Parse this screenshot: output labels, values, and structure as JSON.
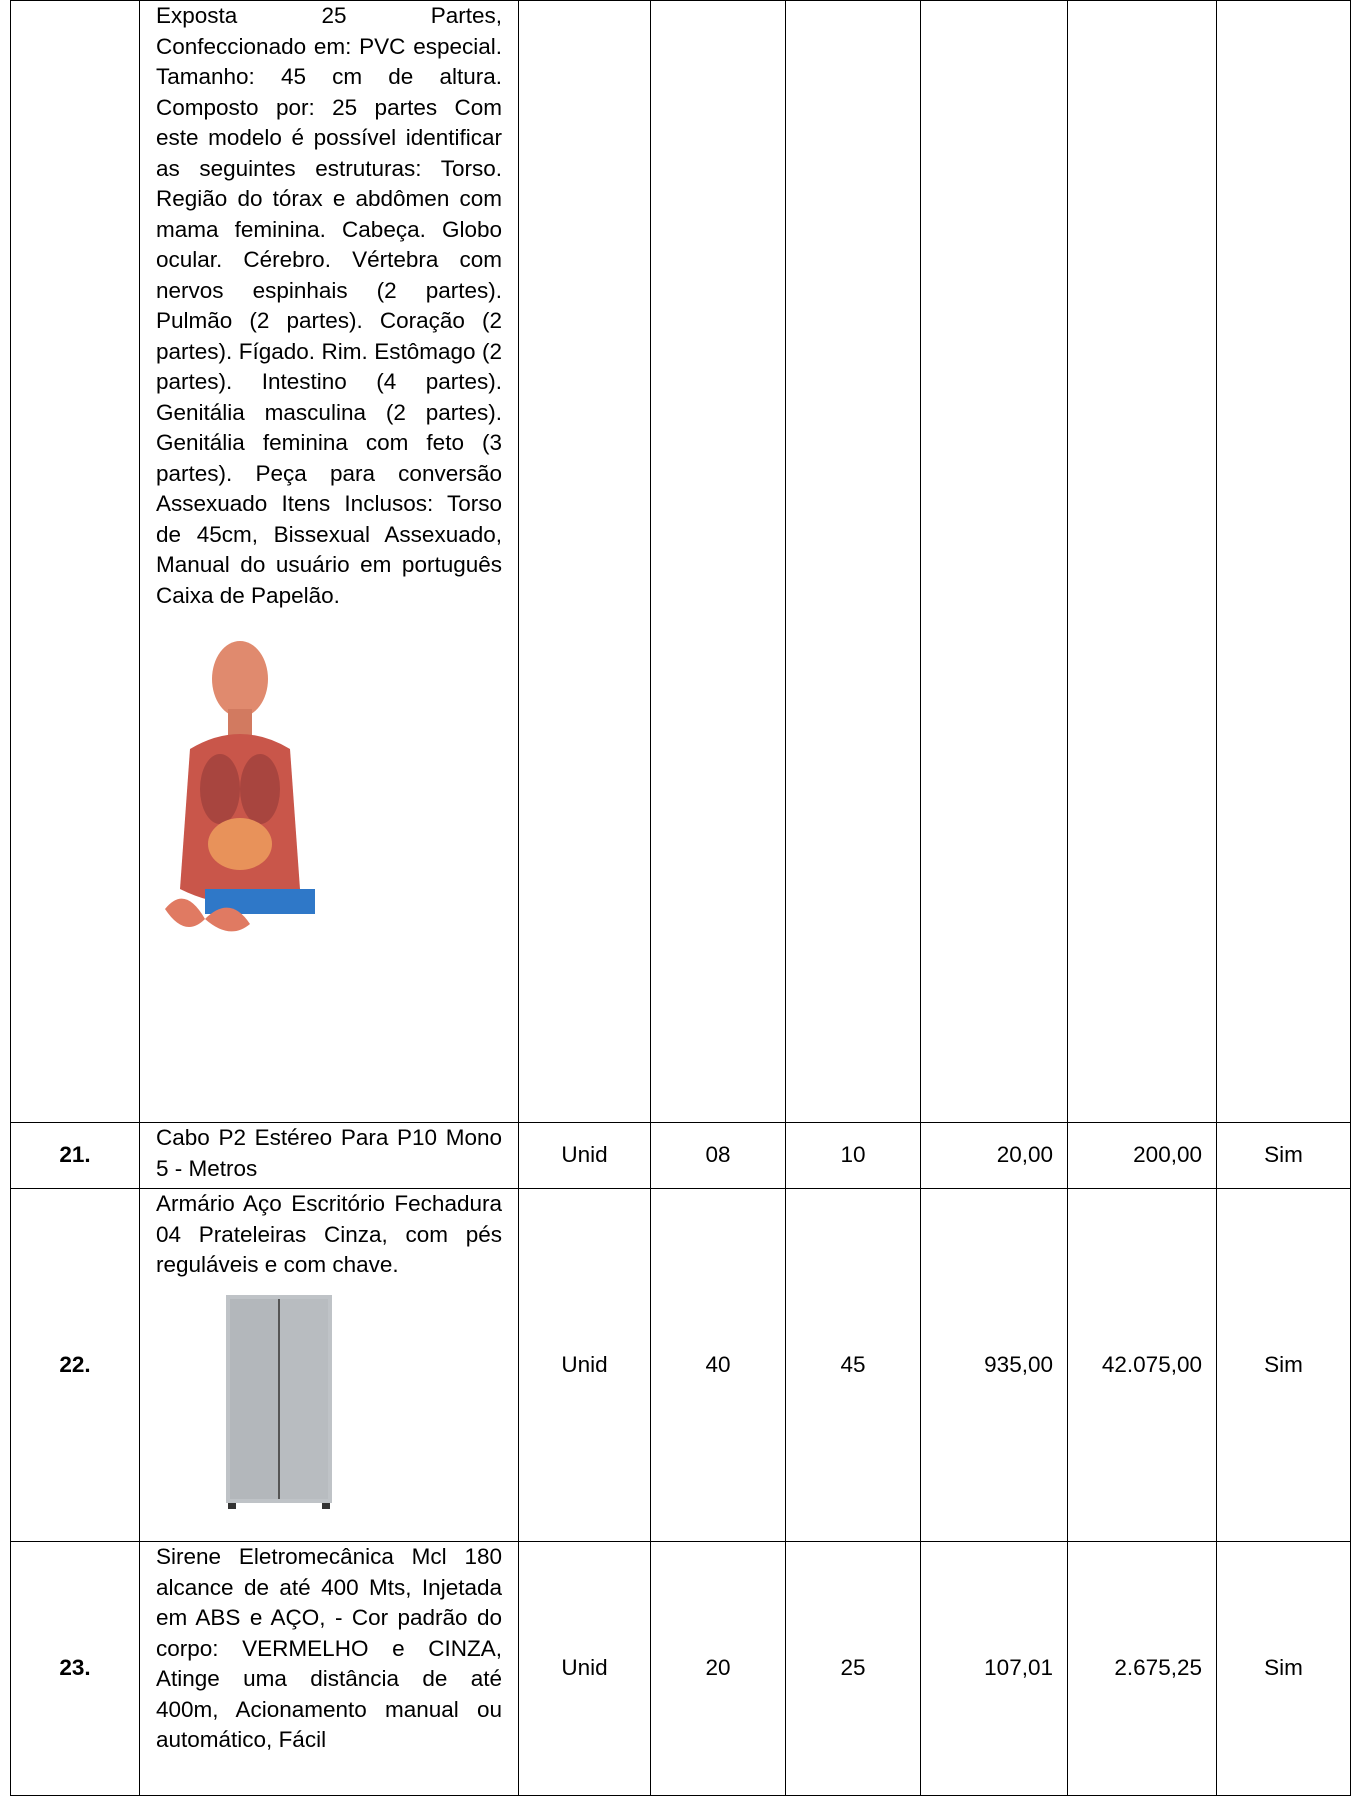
{
  "table": {
    "rows": [
      {
        "description": "Exposta 25 Partes, Confeccionado em: PVC especial. Tamanho: 45 cm de altura. Composto por: 25 partes Com este modelo é possível identificar as seguintes estruturas: Torso. Região do tórax e abdômen com mama feminina. Cabeça. Globo ocular. Cérebro. Vértebra com nervos espinhais (2 partes). Pulmão (2 partes). Coração (2 partes). Fígado. Rim. Estômago (2 partes). Intestino (4 partes). Genitália masculina (2 partes). Genitália feminina com feto (3 partes). Peça para conversão Assexuado Itens Inclusos: Torso de 45cm, Bissexual Assexuado, Manual do usuário em português Caixa de Papelão."
      },
      {
        "item": "21.",
        "description": "Cabo P2 Estéreo Para P10 Mono 5 - Metros",
        "unit": "Unid",
        "qty_a": "08",
        "qty_b": "10",
        "unit_price": "20,00",
        "total": "200,00",
        "answer": "Sim"
      },
      {
        "item": "22.",
        "description": "Armário Aço Escritório Fechadura 04 Prateleiras Cinza, com pés reguláveis e com chave.",
        "unit": "Unid",
        "qty_a": "40",
        "qty_b": "45",
        "unit_price": "935,00",
        "total": "42.075,00",
        "answer": "Sim"
      },
      {
        "item": "23.",
        "description": "Sirene Eletromecânica Mcl 180 alcance de até 400 Mts, Injetada em ABS e AÇO, - Cor padrão do corpo: VERMELHO e CINZA, Atinge uma distância de até 400m, Acionamento manual ou automático, Fácil",
        "unit": "Unid",
        "qty_a": "20",
        "qty_b": "25",
        "unit_price": "107,01",
        "total": "2.675,25",
        "answer": "Sim"
      }
    ]
  }
}
